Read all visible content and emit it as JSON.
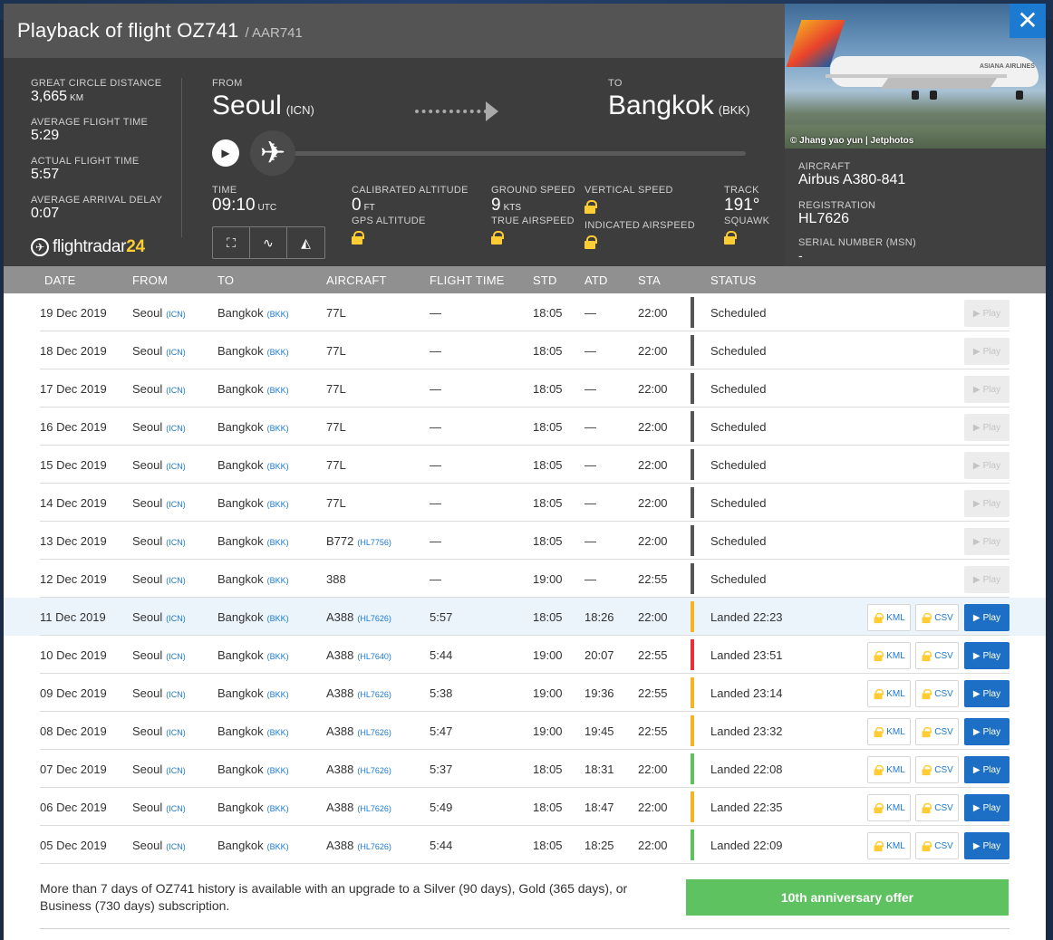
{
  "header": {
    "title": "Playback of flight OZ741",
    "callsign": "/ AAR741"
  },
  "stats": [
    {
      "label": "GREAT CIRCLE DISTANCE",
      "value": "3,665",
      "unit": "KM"
    },
    {
      "label": "AVERAGE FLIGHT TIME",
      "value": "5:29",
      "unit": ""
    },
    {
      "label": "ACTUAL FLIGHT TIME",
      "value": "5:57",
      "unit": ""
    },
    {
      "label": "AVERAGE ARRIVAL DELAY",
      "value": "0:07",
      "unit": ""
    }
  ],
  "logo": {
    "text": "flightradar",
    "num": "24"
  },
  "route": {
    "from_label": "FROM",
    "from_city": "Seoul",
    "from_code": "(ICN)",
    "to_label": "TO",
    "to_city": "Bangkok",
    "to_code": "(BKK)"
  },
  "playback": {
    "progress_fraction": 0.0
  },
  "metrics": {
    "time_label": "TIME",
    "time_value": "09:10",
    "time_unit": "UTC",
    "cal_alt_label": "CALIBRATED ALTITUDE",
    "cal_alt_value": "0",
    "cal_alt_unit": "FT",
    "gps_alt_label": "GPS ALTITUDE",
    "ground_speed_label": "GROUND SPEED",
    "ground_speed_value": "9",
    "ground_speed_unit": "KTS",
    "true_airspeed_label": "TRUE AIRSPEED",
    "vertical_speed_label": "VERTICAL SPEED",
    "indicated_airspeed_label": "INDICATED AIRSPEED",
    "track_label": "TRACK",
    "track_value": "191°",
    "squawk_label": "SQUAWK"
  },
  "aircraft_panel": {
    "photo_credit": "© Jhang yao yun | Jetphotos",
    "aircraft_label": "AIRCRAFT",
    "aircraft_value": "Airbus A380-841",
    "registration_label": "REGISTRATION",
    "registration_value": "HL7626",
    "msn_label": "SERIAL NUMBER (MSN)",
    "msn_value": "-",
    "close_symbol": "✕",
    "livery_text": "ASIANA AIRLINES"
  },
  "table": {
    "headers": [
      "DATE",
      "FROM",
      "TO",
      "AIRCRAFT",
      "FLIGHT TIME",
      "STD",
      "ATD",
      "STA",
      "STATUS"
    ],
    "kml_label": "KML",
    "csv_label": "CSV",
    "play_label": "Play",
    "rows": [
      {
        "date": "19 Dec 2019",
        "from": "Seoul",
        "from_code": "(ICN)",
        "to": "Bangkok",
        "to_code": "(BKK)",
        "aircraft": "77L",
        "reg": "",
        "flight_time": "—",
        "std": "18:05",
        "atd": "—",
        "sta": "22:00",
        "status": "Scheduled",
        "status_color": "#555555",
        "playable": false
      },
      {
        "date": "18 Dec 2019",
        "from": "Seoul",
        "from_code": "(ICN)",
        "to": "Bangkok",
        "to_code": "(BKK)",
        "aircraft": "77L",
        "reg": "",
        "flight_time": "—",
        "std": "18:05",
        "atd": "—",
        "sta": "22:00",
        "status": "Scheduled",
        "status_color": "#555555",
        "playable": false
      },
      {
        "date": "17 Dec 2019",
        "from": "Seoul",
        "from_code": "(ICN)",
        "to": "Bangkok",
        "to_code": "(BKK)",
        "aircraft": "77L",
        "reg": "",
        "flight_time": "—",
        "std": "18:05",
        "atd": "—",
        "sta": "22:00",
        "status": "Scheduled",
        "status_color": "#555555",
        "playable": false
      },
      {
        "date": "16 Dec 2019",
        "from": "Seoul",
        "from_code": "(ICN)",
        "to": "Bangkok",
        "to_code": "(BKK)",
        "aircraft": "77L",
        "reg": "",
        "flight_time": "—",
        "std": "18:05",
        "atd": "—",
        "sta": "22:00",
        "status": "Scheduled",
        "status_color": "#555555",
        "playable": false
      },
      {
        "date": "15 Dec 2019",
        "from": "Seoul",
        "from_code": "(ICN)",
        "to": "Bangkok",
        "to_code": "(BKK)",
        "aircraft": "77L",
        "reg": "",
        "flight_time": "—",
        "std": "18:05",
        "atd": "—",
        "sta": "22:00",
        "status": "Scheduled",
        "status_color": "#555555",
        "playable": false
      },
      {
        "date": "14 Dec 2019",
        "from": "Seoul",
        "from_code": "(ICN)",
        "to": "Bangkok",
        "to_code": "(BKK)",
        "aircraft": "77L",
        "reg": "",
        "flight_time": "—",
        "std": "18:05",
        "atd": "—",
        "sta": "22:00",
        "status": "Scheduled",
        "status_color": "#555555",
        "playable": false
      },
      {
        "date": "13 Dec 2019",
        "from": "Seoul",
        "from_code": "(ICN)",
        "to": "Bangkok",
        "to_code": "(BKK)",
        "aircraft": "B772",
        "reg": "(HL7756)",
        "flight_time": "—",
        "std": "18:05",
        "atd": "—",
        "sta": "22:00",
        "status": "Scheduled",
        "status_color": "#555555",
        "playable": false
      },
      {
        "date": "12 Dec 2019",
        "from": "Seoul",
        "from_code": "(ICN)",
        "to": "Bangkok",
        "to_code": "(BKK)",
        "aircraft": "388",
        "reg": "",
        "flight_time": "—",
        "std": "19:00",
        "atd": "—",
        "sta": "22:55",
        "status": "Scheduled",
        "status_color": "#555555",
        "playable": false
      },
      {
        "date": "11 Dec 2019",
        "from": "Seoul",
        "from_code": "(ICN)",
        "to": "Bangkok",
        "to_code": "(BKK)",
        "aircraft": "A388",
        "reg": "(HL7626)",
        "flight_time": "5:57",
        "std": "18:05",
        "atd": "18:26",
        "sta": "22:00",
        "status": "Landed 22:23",
        "status_color": "#f5b323",
        "playable": true,
        "selected": true
      },
      {
        "date": "10 Dec 2019",
        "from": "Seoul",
        "from_code": "(ICN)",
        "to": "Bangkok",
        "to_code": "(BKK)",
        "aircraft": "A388",
        "reg": "(HL7640)",
        "flight_time": "5:44",
        "std": "19:00",
        "atd": "20:07",
        "sta": "22:55",
        "status": "Landed 23:51",
        "status_color": "#e8303a",
        "playable": true
      },
      {
        "date": "09 Dec 2019",
        "from": "Seoul",
        "from_code": "(ICN)",
        "to": "Bangkok",
        "to_code": "(BKK)",
        "aircraft": "A388",
        "reg": "(HL7626)",
        "flight_time": "5:38",
        "std": "19:00",
        "atd": "19:36",
        "sta": "22:55",
        "status": "Landed 23:14",
        "status_color": "#f5b323",
        "playable": true
      },
      {
        "date": "08 Dec 2019",
        "from": "Seoul",
        "from_code": "(ICN)",
        "to": "Bangkok",
        "to_code": "(BKK)",
        "aircraft": "A388",
        "reg": "(HL7626)",
        "flight_time": "5:47",
        "std": "19:00",
        "atd": "19:45",
        "sta": "22:55",
        "status": "Landed 23:32",
        "status_color": "#f5b323",
        "playable": true
      },
      {
        "date": "07 Dec 2019",
        "from": "Seoul",
        "from_code": "(ICN)",
        "to": "Bangkok",
        "to_code": "(BKK)",
        "aircraft": "A388",
        "reg": "(HL7626)",
        "flight_time": "5:37",
        "std": "18:05",
        "atd": "18:31",
        "sta": "22:00",
        "status": "Landed 22:08",
        "status_color": "#5dc35e",
        "playable": true
      },
      {
        "date": "06 Dec 2019",
        "from": "Seoul",
        "from_code": "(ICN)",
        "to": "Bangkok",
        "to_code": "(BKK)",
        "aircraft": "A388",
        "reg": "(HL7626)",
        "flight_time": "5:49",
        "std": "18:05",
        "atd": "18:47",
        "sta": "22:00",
        "status": "Landed 22:35",
        "status_color": "#f5b323",
        "playable": true
      },
      {
        "date": "05 Dec 2019",
        "from": "Seoul",
        "from_code": "(ICN)",
        "to": "Bangkok",
        "to_code": "(BKK)",
        "aircraft": "A388",
        "reg": "(HL7626)",
        "flight_time": "5:44",
        "std": "18:05",
        "atd": "18:25",
        "sta": "22:00",
        "status": "Landed 22:09",
        "status_color": "#5dc35e",
        "playable": true
      }
    ]
  },
  "footer": {
    "upgrade_text": "More than 7 days of OZ741 history is available with an upgrade to a Silver (90 days), Gold (365 days), or Business (730 days) subscription.",
    "offer_button": "10th anniversary offer"
  }
}
